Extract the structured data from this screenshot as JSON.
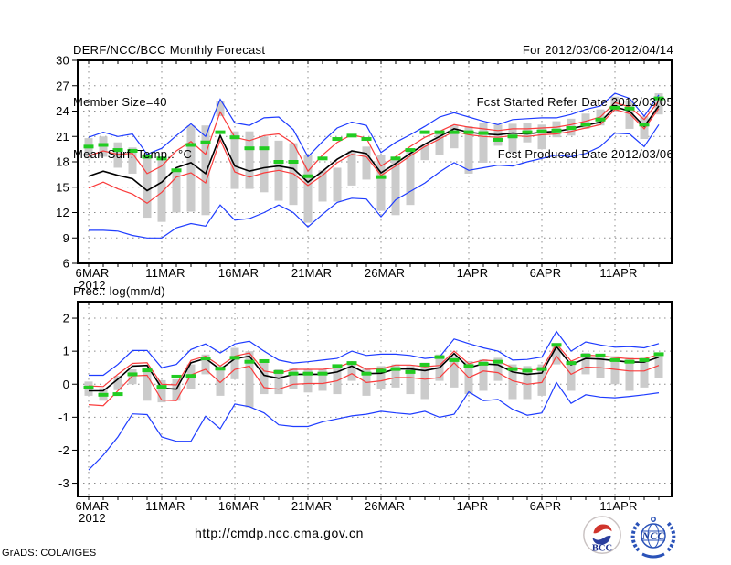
{
  "header": {
    "title_line1": "DERF/NCC/BCC Monthly Forecast",
    "title_line2": "Member Size=40",
    "chart1_label": "Mean Surf. Temp.: °C",
    "right_line1": "For 2012/03/06-2012/04/14",
    "right_line2": "Fcst Started Refer Date 2012/03/05",
    "right_line3": "Fcst Produced Date 2012/03/06"
  },
  "chart2_label": "Prec.: log(mm/d)",
  "footer": {
    "url": "http://cmdp.ncc.cma.gov.cn",
    "credit": "GrADS: COLA/IGES",
    "logo_bcc_text": "BCC",
    "logo_ncc_text": "NCC"
  },
  "colors": {
    "ensemble_envelope": "#1e3cff",
    "sigma_lines": "#fa3c3c",
    "ensemble_mean": "#000000",
    "climatology_dashes": "#22cc22",
    "spread_bars": "#cbcbcb",
    "grid": "#8c8c8c"
  },
  "chart_data": [
    {
      "type": "line",
      "title": "Mean Surf. Temp.: °C",
      "ylim": [
        6,
        30
      ],
      "yticks": [
        6,
        9,
        12,
        15,
        18,
        21,
        24,
        27,
        30
      ],
      "x_sub_label": "2012",
      "xticks": [
        {
          "day": 0,
          "label": "6MAR"
        },
        {
          "day": 5,
          "label": "11MAR"
        },
        {
          "day": 10,
          "label": "16MAR"
        },
        {
          "day": 15,
          "label": "21MAR"
        },
        {
          "day": 20,
          "label": "26MAR"
        },
        {
          "day": 26,
          "label": "1APR"
        },
        {
          "day": 31,
          "label": "6APR"
        },
        {
          "day": 36,
          "label": "11APR"
        }
      ],
      "series": [
        {
          "name": "ens-max",
          "color": "#1e3cff",
          "values": [
            20.9,
            21.5,
            21.0,
            21.3,
            18.9,
            19.6,
            21.1,
            22.5,
            21.0,
            25.4,
            22.6,
            22.3,
            23.2,
            23.3,
            21.8,
            18.6,
            20.4,
            22.0,
            22.7,
            22.3,
            19.1,
            20.3,
            21.2,
            22.2,
            23.3,
            23.8,
            23.3,
            22.8,
            22.4,
            23.0,
            23.1,
            23.2,
            23.2,
            23.6,
            24.2,
            24.6,
            26.1,
            25.5,
            23.4,
            25.9
          ]
        },
        {
          "name": "plus-sigma",
          "color": "#fa3c3c",
          "values": [
            18.7,
            19.3,
            18.9,
            19.0,
            16.6,
            17.5,
            19.3,
            20.4,
            18.9,
            23.9,
            20.9,
            20.5,
            21.1,
            21.3,
            20.2,
            16.9,
            18.8,
            20.3,
            21.2,
            20.8,
            17.5,
            18.6,
            19.8,
            20.9,
            21.6,
            22.4,
            22.1,
            21.9,
            21.7,
            21.9,
            21.9,
            22.0,
            22.1,
            22.4,
            22.8,
            23.3,
            25.0,
            24.5,
            23.0,
            25.2
          ]
        },
        {
          "name": "ens-mean",
          "color": "#000000",
          "values": [
            16.3,
            16.9,
            16.4,
            16.0,
            14.6,
            15.6,
            17.3,
            17.9,
            16.6,
            21.1,
            17.5,
            16.9,
            17.3,
            17.5,
            17.2,
            15.6,
            16.9,
            18.3,
            19.3,
            19.0,
            16.7,
            17.8,
            19.0,
            20.1,
            21.0,
            21.9,
            21.5,
            21.3,
            21.2,
            21.4,
            21.3,
            21.5,
            21.6,
            21.9,
            22.3,
            22.7,
            24.5,
            24.0,
            22.2,
            24.6
          ]
        },
        {
          "name": "minus-sigma",
          "color": "#fa3c3c",
          "values": [
            14.9,
            15.6,
            14.8,
            14.2,
            13.1,
            14.4,
            16.2,
            16.7,
            15.5,
            20.6,
            16.8,
            16.2,
            16.7,
            17.0,
            16.6,
            15.2,
            16.4,
            17.9,
            18.9,
            18.6,
            16.4,
            17.5,
            18.7,
            19.8,
            20.7,
            21.6,
            21.2,
            21.0,
            20.9,
            21.1,
            21.0,
            21.2,
            21.3,
            21.6,
            22.0,
            22.4,
            24.2,
            23.7,
            21.9,
            24.3
          ]
        },
        {
          "name": "ens-min",
          "color": "#1e3cff",
          "values": [
            9.9,
            9.9,
            9.8,
            9.3,
            9.0,
            9.0,
            10.2,
            10.7,
            10.4,
            12.9,
            11.1,
            11.3,
            12.0,
            12.9,
            12.0,
            10.3,
            11.8,
            13.2,
            13.7,
            13.6,
            11.5,
            13.5,
            14.5,
            15.5,
            16.8,
            17.9,
            17.0,
            17.3,
            17.6,
            17.5,
            18.0,
            18.4,
            18.8,
            18.6,
            19.0,
            19.8,
            21.4,
            21.3,
            19.8,
            22.4
          ]
        }
      ],
      "obs": {
        "name": "climatology",
        "color": "#22cc22",
        "values": [
          19.8,
          20.0,
          19.4,
          19.3,
          18.6,
          18.4,
          17.0,
          20.0,
          20.3,
          21.5,
          20.9,
          19.6,
          19.6,
          18.0,
          18.0,
          16.3,
          18.4,
          20.7,
          21.1,
          20.7,
          16.2,
          18.4,
          19.4,
          21.5,
          21.5,
          21.5,
          21.5,
          21.4,
          20.6,
          21.0,
          21.5,
          21.6,
          21.7,
          22.0,
          22.4,
          23.0,
          24.4,
          24.3,
          22.4,
          25.5
        ]
      },
      "bars": {
        "color": "#cbcbcb",
        "top": [
          20.8,
          21.0,
          20.3,
          19.7,
          18.6,
          18.5,
          17.0,
          22.3,
          22.3,
          25.2,
          21.6,
          21.6,
          21.0,
          20.5,
          20.2,
          18.8,
          17.0,
          17.3,
          19.3,
          19.8,
          18.8,
          18.2,
          19.5,
          20.0,
          21.3,
          22.3,
          22.2,
          22.6,
          22.4,
          22.5,
          22.6,
          22.4,
          22.8,
          23.1,
          23.7,
          24.2,
          25.7,
          25.2,
          23.4,
          26.1
        ],
        "bottom": [
          18.4,
          18.6,
          17.3,
          16.6,
          11.4,
          10.9,
          12.0,
          12.1,
          11.7,
          23.4,
          14.8,
          14.8,
          14.4,
          13.4,
          12.9,
          10.8,
          13.3,
          13.3,
          15.2,
          15.9,
          12.2,
          11.7,
          12.9,
          18.2,
          18.8,
          19.6,
          16.6,
          17.9,
          19.9,
          19.1,
          20.3,
          19.5,
          20.9,
          21.1,
          21.9,
          22.3,
          23.9,
          21.9,
          20.7,
          23.6
        ]
      }
    },
    {
      "type": "line",
      "title": "Prec.: log(mm/d)",
      "ylim": [
        -3.4,
        2.5
      ],
      "yticks": [
        -3,
        -2,
        -1,
        0,
        1,
        2
      ],
      "x_sub_label": "2012",
      "xticks": [
        {
          "day": 0,
          "label": "6MAR"
        },
        {
          "day": 5,
          "label": "11MAR"
        },
        {
          "day": 10,
          "label": "16MAR"
        },
        {
          "day": 15,
          "label": "21MAR"
        },
        {
          "day": 20,
          "label": "26MAR"
        },
        {
          "day": 26,
          "label": "1APR"
        },
        {
          "day": 31,
          "label": "6APR"
        },
        {
          "day": 36,
          "label": "11APR"
        }
      ],
      "series": [
        {
          "name": "ens-max",
          "color": "#1e3cff",
          "values": [
            0.27,
            0.27,
            0.6,
            1.02,
            1.02,
            0.5,
            0.6,
            1.05,
            1.22,
            0.95,
            1.22,
            1.3,
            1.0,
            0.73,
            0.64,
            0.68,
            0.73,
            0.78,
            1.0,
            0.87,
            0.91,
            0.91,
            0.87,
            0.78,
            0.82,
            1.37,
            1.23,
            1.1,
            1.0,
            0.73,
            0.75,
            0.82,
            1.6,
            1.0,
            1.28,
            1.19,
            1.12,
            1.14,
            1.1,
            1.23
          ]
        },
        {
          "name": "plus-sigma",
          "color": "#fa3c3c",
          "values": [
            -0.05,
            -0.07,
            0.3,
            0.63,
            0.65,
            0.0,
            -0.02,
            0.72,
            0.85,
            0.55,
            0.85,
            0.95,
            0.4,
            0.33,
            0.45,
            0.45,
            0.45,
            0.5,
            0.68,
            0.45,
            0.47,
            0.58,
            0.58,
            0.53,
            0.57,
            1.0,
            0.62,
            0.73,
            0.7,
            0.5,
            0.42,
            0.46,
            1.22,
            0.7,
            0.88,
            0.86,
            0.81,
            0.77,
            0.77,
            0.9
          ]
        },
        {
          "name": "ens-mean",
          "color": "#000000",
          "values": [
            -0.2,
            -0.2,
            0.15,
            0.55,
            0.57,
            -0.12,
            -0.15,
            0.65,
            0.78,
            0.45,
            0.77,
            0.85,
            0.27,
            0.18,
            0.3,
            0.3,
            0.3,
            0.37,
            0.55,
            0.32,
            0.33,
            0.46,
            0.46,
            0.41,
            0.5,
            0.93,
            0.5,
            0.62,
            0.59,
            0.37,
            0.3,
            0.34,
            1.14,
            0.59,
            0.78,
            0.76,
            0.71,
            0.67,
            0.67,
            0.82
          ]
        },
        {
          "name": "minus-sigma",
          "color": "#fa3c3c",
          "values": [
            -0.62,
            -0.65,
            -0.2,
            0.25,
            0.27,
            -0.48,
            -0.5,
            0.28,
            0.45,
            0.05,
            0.45,
            0.55,
            -0.1,
            -0.15,
            0.0,
            0.02,
            0.02,
            0.1,
            0.32,
            0.05,
            0.1,
            0.2,
            0.2,
            0.15,
            0.2,
            0.65,
            0.2,
            0.4,
            0.35,
            0.1,
            0.0,
            0.05,
            0.85,
            0.3,
            0.52,
            0.5,
            0.45,
            0.4,
            0.4,
            0.57
          ]
        },
        {
          "name": "ens-min",
          "color": "#1e3cff",
          "values": [
            -2.6,
            -2.15,
            -1.6,
            -0.9,
            -0.92,
            -1.6,
            -1.73,
            -1.73,
            -0.97,
            -1.35,
            -0.6,
            -0.68,
            -0.87,
            -1.23,
            -1.28,
            -1.28,
            -1.14,
            -1.05,
            -0.96,
            -0.91,
            -0.82,
            -0.87,
            -0.91,
            -0.82,
            -1.0,
            -0.91,
            -0.23,
            -0.5,
            -0.46,
            -0.76,
            -0.94,
            -0.87,
            0.05,
            -0.58,
            -0.32,
            -0.39,
            -0.41,
            -0.37,
            -0.32,
            -0.26
          ]
        }
      ],
      "obs": {
        "name": "climatology",
        "color": "#22cc22",
        "values": [
          -0.1,
          -0.32,
          -0.3,
          0.3,
          0.42,
          -0.08,
          0.23,
          0.25,
          0.78,
          0.47,
          0.8,
          0.68,
          0.7,
          0.37,
          0.32,
          0.32,
          0.32,
          0.55,
          0.64,
          0.32,
          0.41,
          0.46,
          0.37,
          0.59,
          0.82,
          0.73,
          0.55,
          0.62,
          0.68,
          0.46,
          0.41,
          0.46,
          1.19,
          0.64,
          0.87,
          0.87,
          0.73,
          0.68,
          0.73,
          0.91
        ]
      },
      "bars": {
        "color": "#cbcbcb",
        "top": [
          0.08,
          -0.12,
          0.25,
          0.45,
          0.5,
          0.12,
          0.15,
          0.6,
          0.9,
          0.55,
          1.1,
          1.0,
          0.75,
          0.45,
          0.5,
          0.45,
          0.45,
          0.5,
          0.7,
          0.5,
          0.55,
          0.6,
          0.55,
          0.65,
          0.9,
          0.85,
          0.7,
          0.75,
          0.8,
          0.6,
          0.55,
          0.6,
          1.25,
          0.7,
          0.95,
          0.9,
          0.85,
          0.8,
          0.8,
          0.95
        ],
        "bottom": [
          -0.35,
          -0.5,
          -0.18,
          0.0,
          -0.5,
          -0.55,
          -0.5,
          -0.15,
          0.3,
          -0.35,
          0.15,
          -0.7,
          -0.3,
          -0.3,
          -0.15,
          -0.25,
          -0.2,
          -0.3,
          0.1,
          -0.35,
          -0.15,
          -0.1,
          -0.3,
          -0.45,
          0.1,
          -0.1,
          -0.3,
          -0.2,
          0.1,
          -0.45,
          -0.45,
          -0.35,
          0.6,
          -0.2,
          0.3,
          0.2,
          0.0,
          -0.2,
          -0.1,
          0.2
        ]
      }
    }
  ]
}
